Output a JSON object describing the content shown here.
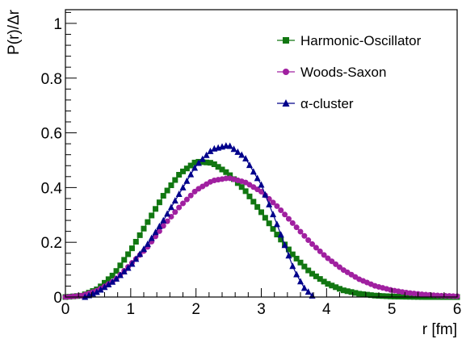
{
  "chart_data": {
    "type": "line",
    "xlabel": "r [fm]",
    "ylabel": "P(r)/Δr",
    "xlim": [
      0,
      6
    ],
    "ylim": [
      0,
      1.05
    ],
    "x_ticks": [
      "0",
      "1",
      "2",
      "3",
      "4",
      "5",
      "6"
    ],
    "y_ticks": [
      "0",
      "0.2",
      "0.4",
      "0.6",
      "0.8",
      "1"
    ],
    "grid": false,
    "legend_position": "top-right",
    "series": [
      {
        "name": "Harmonic-Oscillator",
        "color": "#117711",
        "marker": "square",
        "x": [
          0.0,
          0.25,
          0.5,
          0.75,
          1.0,
          1.25,
          1.5,
          1.75,
          2.0,
          2.25,
          2.5,
          2.75,
          3.0,
          3.25,
          3.5,
          3.75,
          4.0,
          4.25,
          4.5,
          4.75,
          5.0,
          5.5,
          6.0
        ],
        "y": [
          0.0,
          0.005,
          0.03,
          0.085,
          0.17,
          0.27,
          0.37,
          0.45,
          0.495,
          0.49,
          0.45,
          0.39,
          0.31,
          0.225,
          0.15,
          0.09,
          0.05,
          0.025,
          0.012,
          0.005,
          0.002,
          0.0,
          0.0
        ]
      },
      {
        "name": "Woods-Saxon",
        "color": "#a020a0",
        "marker": "circle",
        "x": [
          0.0,
          0.25,
          0.5,
          0.75,
          1.0,
          1.25,
          1.5,
          1.75,
          2.0,
          2.25,
          2.5,
          2.75,
          3.0,
          3.25,
          3.5,
          3.75,
          4.0,
          4.25,
          4.5,
          4.75,
          5.0,
          5.25,
          5.5,
          5.75,
          6.0
        ],
        "y": [
          0.0,
          0.005,
          0.025,
          0.06,
          0.12,
          0.18,
          0.26,
          0.33,
          0.39,
          0.425,
          0.435,
          0.42,
          0.385,
          0.33,
          0.265,
          0.2,
          0.145,
          0.1,
          0.065,
          0.04,
          0.025,
          0.015,
          0.009,
          0.005,
          0.003
        ]
      },
      {
        "name": "α-cluster",
        "color": "#00008b",
        "marker": "triangle",
        "x": [
          0.3,
          0.5,
          0.75,
          1.0,
          1.25,
          1.5,
          1.75,
          2.0,
          2.25,
          2.5,
          2.75,
          3.0,
          3.25,
          3.5,
          3.65,
          3.8
        ],
        "y": [
          0.0,
          0.02,
          0.06,
          0.115,
          0.19,
          0.28,
          0.38,
          0.48,
          0.54,
          0.555,
          0.51,
          0.41,
          0.26,
          0.1,
          0.035,
          0.0
        ]
      }
    ]
  }
}
